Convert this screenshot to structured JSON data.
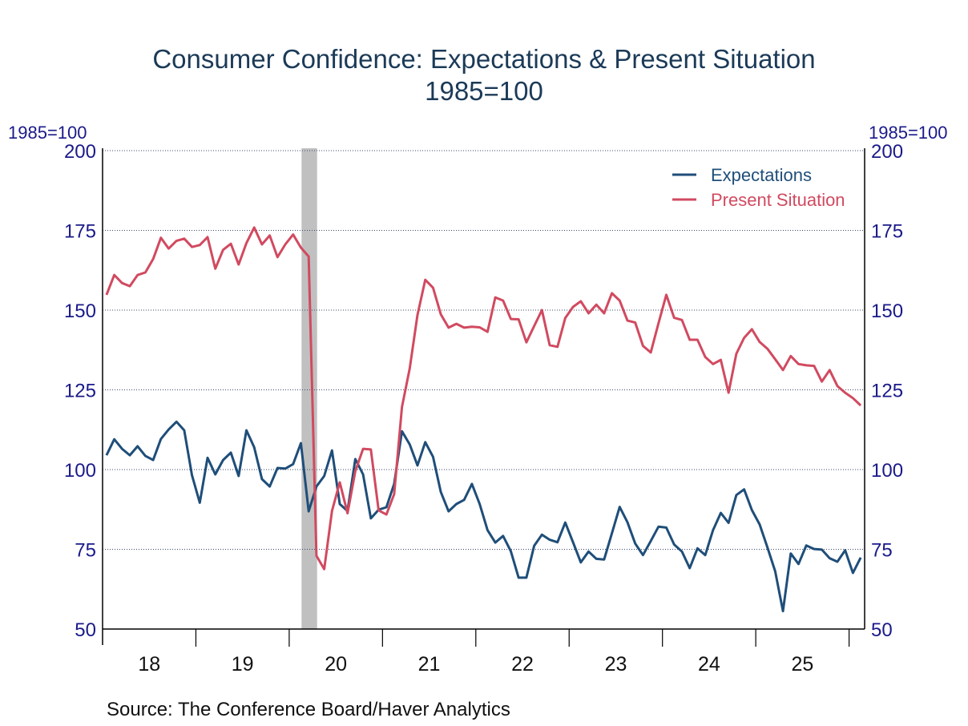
{
  "chart_data": {
    "type": "line",
    "title": "Consumer Confidence: Expectations & Present Situation",
    "subtitle": "1985=100",
    "ylabel_left": "1985=100",
    "ylabel_right": "1985=100",
    "ylim": [
      50,
      200
    ],
    "yticks": [
      50,
      75,
      100,
      125,
      150,
      175,
      200
    ],
    "x_start": "2018-01",
    "x_end": "2026-02",
    "frequency": "monthly",
    "xtick_labels": [
      "18",
      "19",
      "20",
      "21",
      "22",
      "23",
      "24",
      "25"
    ],
    "grid": true,
    "legend_position": "top-right",
    "recession": {
      "start": "2020-03",
      "end": "2020-04"
    },
    "source": "Source:  The Conference Board/Haver Analytics",
    "series": [
      {
        "name": "Expectations",
        "color": "#1f4e79",
        "values": [
          104.5,
          109.5,
          106.5,
          104.5,
          107.3,
          104.3,
          103,
          109.6,
          112.6,
          115,
          112.3,
          98.2,
          89.6,
          103.7,
          98.5,
          103,
          105.3,
          98,
          112.3,
          107,
          97,
          94.7,
          100.5,
          100.3,
          101.7,
          108.3,
          86.9,
          94.7,
          98,
          106,
          89.2,
          87,
          103.3,
          98.5,
          84.7,
          87.4,
          88.2,
          95.5,
          112,
          107.9,
          101.3,
          108.6,
          104,
          93,
          86.9,
          89.2,
          90.5,
          95.5,
          89.2,
          81,
          77.1,
          79.2,
          74.4,
          66.1,
          66.1,
          76.1,
          79.6,
          78,
          77.2,
          83.4,
          77.2,
          70.9,
          74.3,
          72,
          71.8,
          80,
          88.3,
          83.5,
          76.8,
          73.2,
          77.6,
          82.1,
          81.8,
          76.5,
          74.3,
          69.1,
          75.3,
          73.2,
          81,
          86.4,
          83.3,
          92,
          93.8,
          87.3,
          82.8,
          75.6,
          68.1,
          55.6,
          73.7,
          70.4,
          76.2,
          75.1,
          74.9,
          72.2,
          71.1,
          74.7,
          67.6,
          72.4
        ]
      },
      {
        "name": "Present Situation",
        "color": "#d14a60",
        "values": [
          154.8,
          161,
          158.5,
          157.5,
          161,
          161.8,
          166,
          172.7,
          169.3,
          171.7,
          172.4,
          169.8,
          170.4,
          172.9,
          163,
          168.9,
          170.8,
          164.3,
          171,
          175.9,
          170.6,
          173.4,
          166.6,
          170.6,
          173.7,
          169.6,
          166.8,
          73,
          68.8,
          87,
          96,
          86.3,
          99.5,
          106.5,
          106.3,
          87.2,
          85.9,
          92.3,
          119.6,
          131.7,
          148.5,
          159.5,
          157,
          148.7,
          144.5,
          145.7,
          144.5,
          144.8,
          144.6,
          143.2,
          154,
          153,
          147.2,
          147.1,
          139.9,
          145,
          150,
          139,
          138.5,
          147.5,
          151,
          152.8,
          149,
          151.7,
          149,
          155.3,
          153,
          146.7,
          146.1,
          138.8,
          136.7,
          145.9,
          154.8,
          147.6,
          146.9,
          140.7,
          140.7,
          135.3,
          133.1,
          134.4,
          124.1,
          136.3,
          141.3,
          144,
          140,
          137.9,
          134.6,
          131.2,
          135.6,
          133.1,
          132.7,
          132.5,
          127.6,
          131.2,
          126.2,
          124.1,
          122.4,
          120.1
        ]
      }
    ]
  },
  "colors": {
    "axis_text": "#1a1a8a",
    "title": "#1b3a57",
    "grid": "#3a4a6a",
    "recession": "#c0c0c0"
  }
}
